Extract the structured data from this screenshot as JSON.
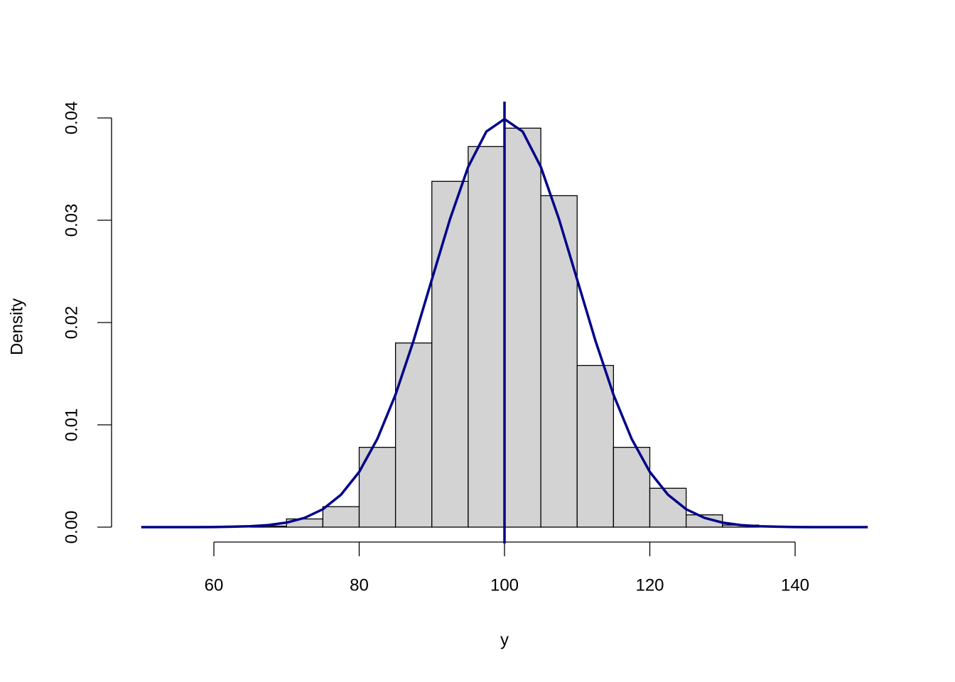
{
  "chart_data": {
    "type": "histogram",
    "x_label": "y",
    "y_label": "Density",
    "bins": [
      65,
      70,
      75,
      80,
      85,
      90,
      95,
      100,
      105,
      110,
      115,
      120,
      125,
      130,
      135
    ],
    "values": [
      0.0001,
      0.0008,
      0.002,
      0.0078,
      0.018,
      0.0338,
      0.0372,
      0.039,
      0.0324,
      0.0158,
      0.0078,
      0.0038,
      0.0012,
      0.0002
    ],
    "color": "#d3d3d3",
    "curve": {
      "color": "#00008b",
      "x": [
        50,
        52.5,
        55,
        57.5,
        60,
        62.5,
        65,
        67.5,
        70,
        72.5,
        75,
        77.5,
        80,
        82.5,
        85,
        87.5,
        90,
        92.5,
        95,
        97.5,
        100,
        102.5,
        105,
        107.5,
        110,
        112.5,
        115,
        117.5,
        120,
        122.5,
        125,
        127.5,
        130,
        132.5,
        135,
        137.5,
        140,
        142.5,
        145,
        147.5,
        150
      ],
      "values": [
        0,
        0,
        0,
        0,
        1e-05,
        4e-05,
        9e-05,
        0.0002,
        0.00044,
        0.00091,
        0.00175,
        0.00317,
        0.0054,
        0.00863,
        0.01295,
        0.01826,
        0.0242,
        0.03011,
        0.03521,
        0.03867,
        0.03989,
        0.03867,
        0.03521,
        0.03011,
        0.0242,
        0.01826,
        0.01295,
        0.00863,
        0.0054,
        0.00317,
        0.00175,
        0.00091,
        0.00044,
        0.0002,
        9e-05,
        4e-05,
        1e-05,
        0,
        0,
        0,
        0
      ]
    },
    "vline": 100,
    "xlim": [
      46,
      154
    ],
    "ylim": [
      -0.0016,
      0.0416
    ],
    "xticks": [
      60,
      80,
      100,
      120,
      140
    ],
    "yticks": [
      {
        "value": 0,
        "label": "0.00"
      },
      0.01,
      0.02,
      0.03,
      0.04
    ]
  }
}
